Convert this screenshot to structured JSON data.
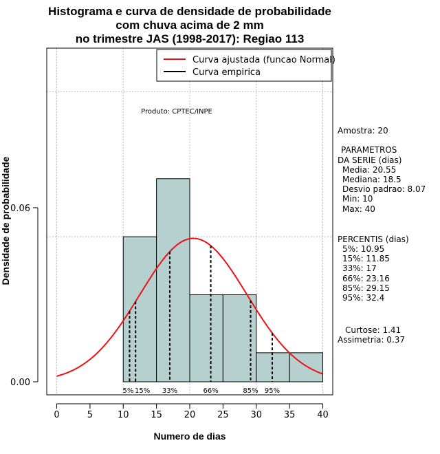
{
  "chart_data": {
    "type": "bar",
    "title": [
      "Histograma e curva de densidade de probabilidade",
      "com chuva acima de 2 mm",
      "no trimestre JAS (1998-2017): Regiao 113"
    ],
    "xlabel": "Numero de dias",
    "ylabel": "Densidade de probabilidade",
    "xlim": [
      -1.5,
      41.5
    ],
    "ylim": [
      -0.0045,
      0.115
    ],
    "x_ticks": [
      0,
      5,
      10,
      15,
      20,
      25,
      30,
      35,
      40
    ],
    "y_ticks": [
      0.0,
      0.06
    ],
    "y_tick_labels": [
      "0.00",
      "0.06"
    ],
    "grid_x": [
      0,
      10,
      20,
      30,
      40
    ],
    "grid_y": [
      0.05,
      0.1
    ],
    "histogram": {
      "bins": [
        [
          10,
          15
        ],
        [
          15,
          20
        ],
        [
          20,
          25
        ],
        [
          25,
          30
        ],
        [
          30,
          35
        ],
        [
          35,
          40
        ]
      ],
      "density": [
        0.05,
        0.07,
        0.03,
        0.03,
        0.01,
        0.01
      ],
      "fill": "#b6cfcf"
    },
    "normal_curve": {
      "mean": 20.55,
      "sd": 8.07,
      "x_range": [
        0,
        40
      ],
      "color": "#ee1111"
    },
    "percentile_lines": [
      {
        "label": "5%",
        "x": 10.95
      },
      {
        "label": "15%",
        "x": 11.85
      },
      {
        "label": "33%",
        "x": 17
      },
      {
        "label": "66%",
        "x": 23.16
      },
      {
        "label": "85%",
        "x": 29.15
      },
      {
        "label": "95%",
        "x": 32.4
      }
    ],
    "legend": [
      {
        "label": "Curva ajustada (funcao Normal)",
        "color": "#ee1111"
      },
      {
        "label": "Curva empirica",
        "color": "#000000"
      }
    ],
    "legend_position": "top-right",
    "annotation": "Produto: CPTEC/INPE"
  },
  "stats_panel": {
    "amostra": "Amostra: 20",
    "param_header_1": "PARAMETROS",
    "param_header_2": "DA SERIE (dias)",
    "params": [
      "Media: 20.55",
      "Mediana: 18.5",
      "Desvio padrao: 8.07",
      "Min: 10",
      "Max: 40"
    ],
    "perc_header": "PERCENTIS (dias)",
    "percentis": [
      "5%: 10.95",
      "15%: 11.85",
      "33%: 17",
      "66%: 23.16",
      "85%: 29.15",
      "95%: 32.4"
    ],
    "curtose": "Curtose: 1.41",
    "assimetria": "Assimetria: 0.37"
  }
}
